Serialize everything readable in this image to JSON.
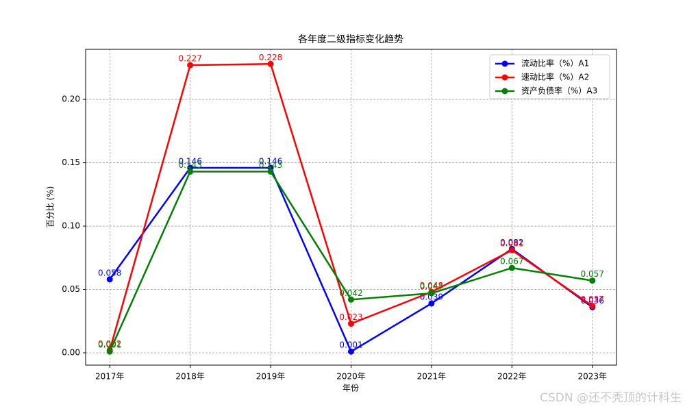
{
  "chart_data": {
    "type": "line",
    "title": "各年度二级指标变化趋势",
    "x_label": "年份",
    "y_label": "百分比 (%)",
    "categories": [
      "2017年",
      "2018年",
      "2019年",
      "2020年",
      "2021年",
      "2022年",
      "2023年"
    ],
    "series": [
      {
        "name": "流动比率（%）A1",
        "color": "#0000ff",
        "values": [
          0.058,
          0.146,
          0.146,
          0.001,
          0.039,
          0.082,
          0.036
        ]
      },
      {
        "name": "速动比率（%）A2",
        "color": "#ff0000",
        "values": [
          0.002,
          0.227,
          0.228,
          0.023,
          0.048,
          0.081,
          0.037
        ]
      },
      {
        "name": "资产负债率（%）A3",
        "color": "#008000",
        "values": [
          0.001,
          0.143,
          0.143,
          0.042,
          0.047,
          0.067,
          0.057
        ]
      }
    ],
    "ylim": [
      -0.0097,
      0.2395
    ],
    "yticks": [
      {
        "value": 0,
        "label": "0.00"
      },
      0.05,
      {
        "value": 0.1,
        "label": "0.10"
      },
      0.15,
      {
        "value": 0.2,
        "label": "0.20"
      }
    ],
    "grid": true,
    "legend": "upper right",
    "watermark": "CSDN @还不秃顶的计科生"
  }
}
